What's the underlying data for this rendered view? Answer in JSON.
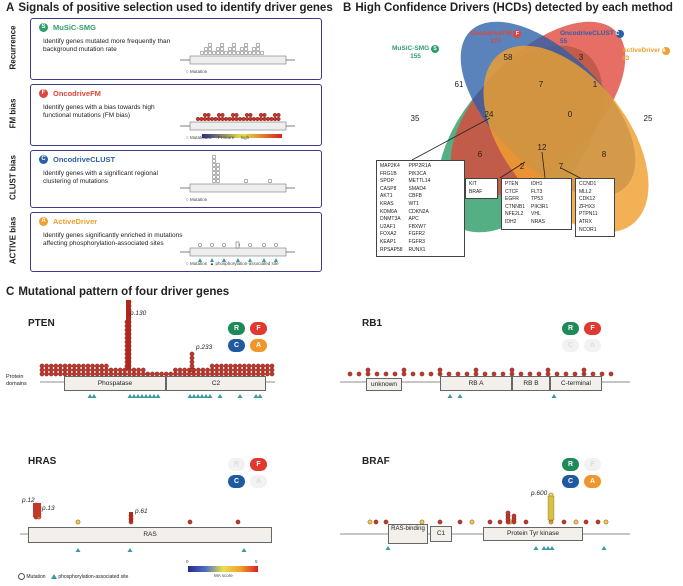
{
  "panel_a": {
    "letter": "A",
    "title": "Signals of positive selection used to identify driver genes",
    "methods": [
      {
        "name": "MuSiC-SMG",
        "badge": "S",
        "color": "#2e9e6a",
        "axis": "Recurrence",
        "desc": "Identify genes mutated more frequently than background mutation rate",
        "legend": "Mutation"
      },
      {
        "name": "OncodriveFM",
        "badge": "F",
        "color": "#e0453a",
        "axis": "FM bias",
        "desc": "Identify genes with a bias towards high functional mutations (FM bias)",
        "legend": "Mutation",
        "scale_low": "low",
        "scale_high": "high",
        "scale_label": "FI score"
      },
      {
        "name": "OncodriveCLUST",
        "badge": "C",
        "color": "#2b5fa8",
        "axis": "CLUST bias",
        "desc": "Identify genes with a significant regional clustering of mutations",
        "legend": "Mutation"
      },
      {
        "name": "ActiveDriver",
        "badge": "A",
        "color": "#f0a030",
        "axis": "ACTIVE bias",
        "desc": "Identify genes significantly enriched in mutations affecting phosphorylation-associated sites",
        "legend": "Mutation",
        "legend2": "phosphorylation-associated site"
      }
    ]
  },
  "panel_b": {
    "letter": "B",
    "title": "High Confidence Drivers (HCDs) detected by each method",
    "sets": [
      {
        "name": "MuSiC-SMG",
        "count": "155",
        "badge": "S",
        "color": "#2e9e6a"
      },
      {
        "name": "OncodriveFM",
        "count": "177",
        "badge": "F",
        "color": "#e0453a"
      },
      {
        "name": "OncodriveCLUST",
        "count": "55",
        "badge": "C",
        "color": "#2b5fa8"
      },
      {
        "name": "ActiveDriver",
        "count": "63",
        "badge": "A",
        "color": "#f0a030"
      }
    ],
    "region_counts": [
      "58",
      "3",
      "61",
      "7",
      "1",
      "35",
      "24",
      "0",
      "25",
      "6",
      "12",
      "8",
      "2",
      "7",
      "8"
    ],
    "box_big": {
      "col1": [
        "MAP2K4",
        "FRG1B",
        "SPOP",
        "CASP8",
        "AKT1",
        "KRAS",
        "KDM6A",
        "DNMT3A",
        "U2AF1",
        "FOXA2",
        "KEAP1",
        "RPSAP58"
      ],
      "col2": [
        "PPP2R1A",
        "PIK3CA",
        "METTL14",
        "SMAD4",
        "CBFB",
        "WT1",
        "CDKN2A",
        "APC",
        "FBXW7",
        "FGFR2",
        "FGFR3",
        "RUNX1"
      ]
    },
    "box_kit": [
      "KIT",
      "BRAF"
    ],
    "box_center": {
      "col1": [
        "PTEN",
        "CTCF",
        "EGFR",
        "CTNNB1",
        "NFE2L2",
        "IDH2"
      ],
      "col2": [
        "IDH1",
        "FLT3",
        "TP53",
        "PIK3R1",
        "VHL",
        "NRAS"
      ]
    },
    "box_right": [
      "CCND1",
      "MLL2",
      "CDK12",
      "ZFHX3",
      "PTPN11",
      "ATRX",
      "NCOR1"
    ]
  },
  "panel_c": {
    "letter": "C",
    "title": "Mutational pattern of four driver genes",
    "protein_domains_label": "Protein domains",
    "genes": [
      {
        "name": "PTEN",
        "domains": [
          "Phospatase",
          "C2"
        ],
        "peaks": [
          "p.130",
          "p.233"
        ],
        "badges": [
          {
            "t": "R",
            "on": true
          },
          {
            "t": "F",
            "on": true
          },
          {
            "t": "C",
            "on": true
          },
          {
            "t": "A",
            "on": true
          }
        ]
      },
      {
        "name": "RB1",
        "domains": [
          "unknown",
          "RB A",
          "RB B",
          "C-terminal"
        ],
        "peaks": [],
        "badges": [
          {
            "t": "R",
            "on": true
          },
          {
            "t": "F",
            "on": true
          },
          {
            "t": "C",
            "on": false
          },
          {
            "t": "A",
            "on": false
          }
        ]
      },
      {
        "name": "HRAS",
        "domains": [
          "RAS"
        ],
        "peaks": [
          "p.12",
          "p.13",
          "p.61"
        ],
        "badges": [
          {
            "t": "R",
            "on": false
          },
          {
            "t": "F",
            "on": true
          },
          {
            "t": "C",
            "on": true
          },
          {
            "t": "A",
            "on": false
          }
        ]
      },
      {
        "name": "BRAF",
        "domains": [
          "RAS-binding",
          "C1",
          "Protein Tyr kinase"
        ],
        "peaks": [
          "p.600"
        ],
        "badges": [
          {
            "t": "R",
            "on": true
          },
          {
            "t": "F",
            "on": false
          },
          {
            "t": "C",
            "on": true
          },
          {
            "t": "A",
            "on": true
          }
        ]
      }
    ],
    "legend": {
      "mutation": "Mutation",
      "phospho": "phosphorylation-associated site",
      "scale_min": "0",
      "scale_max": "5",
      "scale_label": "MA score"
    }
  },
  "colors": {
    "R": "#1e8a5a",
    "F": "#e0392f",
    "C": "#1f5aa0",
    "A": "#f0962a",
    "frame": "#3c3a8c"
  }
}
